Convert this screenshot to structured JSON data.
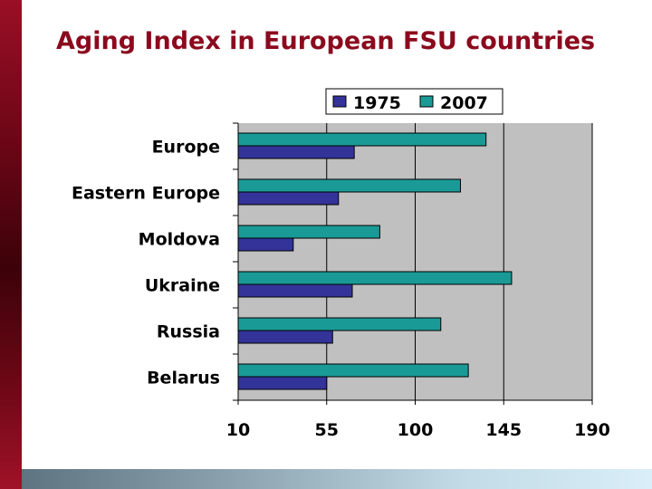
{
  "slide": {
    "title": "Aging Index in European FSU countries"
  },
  "colors": {
    "accent": "#8b0a1e",
    "series_1975": "#333399",
    "series_2007": "#1a9a96",
    "plot_bg": "#c0c0c0"
  },
  "chart_data": {
    "type": "bar",
    "orientation": "horizontal",
    "title": "",
    "xlabel": "",
    "ylabel": "",
    "categories": [
      "Europe",
      "Eastern Europe",
      "Moldova",
      "Ukraine",
      "Russia",
      "Belarus"
    ],
    "series": [
      {
        "name": "1975",
        "color": "#333399",
        "values": [
          69,
          61,
          38,
          68,
          58,
          55
        ]
      },
      {
        "name": "2007",
        "color": "#1a9a96",
        "values": [
          136,
          123,
          82,
          149,
          113,
          127
        ]
      }
    ],
    "xlim": [
      10,
      190
    ],
    "xticks": [
      "10",
      "55",
      "100",
      "145",
      "190"
    ],
    "grid": "vertical",
    "legend": "top"
  }
}
